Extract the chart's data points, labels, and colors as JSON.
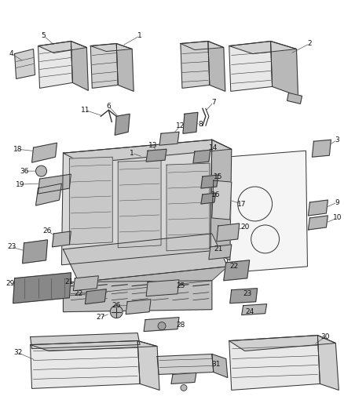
{
  "title": "",
  "background_color": "#ffffff",
  "figsize": [
    4.38,
    5.33
  ],
  "dpi": 100,
  "label_fontsize": 6.5,
  "label_color": "#111111",
  "line_color": "#555555",
  "part_edge_color": "#333333",
  "part_fill_light": "#e8e8e8",
  "part_fill_mid": "#d0d0d0",
  "part_fill_dark": "#b8b8b8",
  "part_fill_darker": "#a0a0a0"
}
